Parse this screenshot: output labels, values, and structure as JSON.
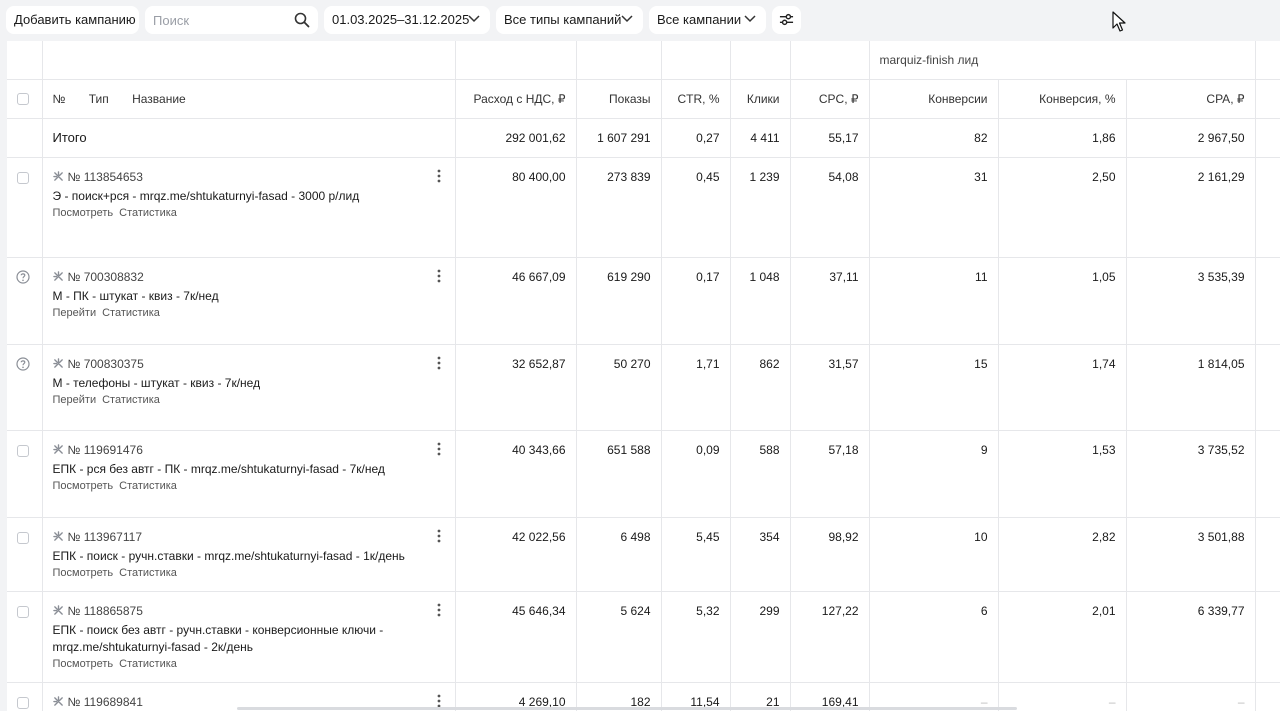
{
  "toolbar": {
    "add_campaign": "Добавить кампанию",
    "search_placeholder": "Поиск",
    "date_range": "01.03.2025–31.12.2025",
    "campaign_types": "Все типы кампаний",
    "campaigns": "Все кампании",
    "icons": {
      "search": "search-icon",
      "chevron": "chevron-down-icon",
      "settings": "sliders-icon",
      "cursor": "mouse-cursor-icon"
    }
  },
  "table": {
    "group_header": "marquiz-finish лид",
    "columns": {
      "no": "№",
      "type": "Тип",
      "name": "Название",
      "spend": "Расход с НДС, ₽",
      "impressions": "Показы",
      "ctr": "CTR, %",
      "clicks": "Клики",
      "cpc": "CPC, ₽",
      "conversions": "Конверсии",
      "conv_rate": "Конверсия, %",
      "cpa": "CPA, ₽"
    },
    "total": {
      "label": "Итого",
      "spend": "292 001,62",
      "impressions": "1 607 291",
      "ctr": "0,27",
      "clicks": "4 411",
      "cpc": "55,17",
      "conversions": "82",
      "conv_rate": "1,86",
      "cpa": "2 967,50"
    },
    "rows": [
      {
        "marker": "checkbox",
        "no": "№ 113854653",
        "title": "Э - поиск+рся - mrqz.me/shtukaturnyi-fasad - 3000 р/лид",
        "link1": "Посмотреть",
        "link2": "Статистика",
        "spend": "80 400,00",
        "impressions": "273 839",
        "ctr": "0,45",
        "clicks": "1 239",
        "cpc": "54,08",
        "conversions": "31",
        "conv_rate": "2,50",
        "cpa": "2 161,29"
      },
      {
        "marker": "question",
        "no": "№ 700308832",
        "title": "М - ПК - штукат - квиз - 7к/нед",
        "link1": "Перейти",
        "link2": "Статистика",
        "spend": "46 667,09",
        "impressions": "619 290",
        "ctr": "0,17",
        "clicks": "1 048",
        "cpc": "37,11",
        "conversions": "11",
        "conv_rate": "1,05",
        "cpa": "3 535,39"
      },
      {
        "marker": "question",
        "no": "№ 700830375",
        "title": "М - телефоны - штукат - квиз - 7к/нед",
        "link1": "Перейти",
        "link2": "Статистика",
        "spend": "32 652,87",
        "impressions": "50 270",
        "ctr": "1,71",
        "clicks": "862",
        "cpc": "31,57",
        "conversions": "15",
        "conv_rate": "1,74",
        "cpa": "1 814,05"
      },
      {
        "marker": "checkbox",
        "no": "№ 119691476",
        "title": "ЕПК - рся без автг - ПК - mrqz.me/shtukaturnyi-fasad - 7к/нед",
        "link1": "Посмотреть",
        "link2": "Статистика",
        "spend": "40 343,66",
        "impressions": "651 588",
        "ctr": "0,09",
        "clicks": "588",
        "cpc": "57,18",
        "conversions": "9",
        "conv_rate": "1,53",
        "cpa": "3 735,52"
      },
      {
        "marker": "checkbox",
        "no": "№ 113967117",
        "title": "ЕПК - поиск - ручн.ставки - mrqz.me/shtukaturnyi-fasad - 1к/день",
        "link1": "Посмотреть",
        "link2": "Статистика",
        "spend": "42 022,56",
        "impressions": "6 498",
        "ctr": "5,45",
        "clicks": "354",
        "cpc": "98,92",
        "conversions": "10",
        "conv_rate": "2,82",
        "cpa": "3 501,88"
      },
      {
        "marker": "checkbox",
        "no": "№ 118865875",
        "title": "ЕПК - поиск без автг - ручн.ставки - конверсионные ключи - mrqz.me/shtukaturnyi-fasad - 2к/день",
        "link1": "Посмотреть",
        "link2": "Статистика",
        "spend": "45 646,34",
        "impressions": "5 624",
        "ctr": "5,32",
        "clicks": "299",
        "cpc": "127,22",
        "conversions": "6",
        "conv_rate": "2,01",
        "cpa": "6 339,77"
      },
      {
        "marker": "checkbox",
        "no": "№ 119689841",
        "title": "",
        "link1": "",
        "link2": "",
        "spend": "4 269,10",
        "impressions": "182",
        "ctr": "11,54",
        "clicks": "21",
        "cpc": "169,41",
        "conversions": "–",
        "conv_rate": "–",
        "cpa": "–"
      }
    ]
  }
}
